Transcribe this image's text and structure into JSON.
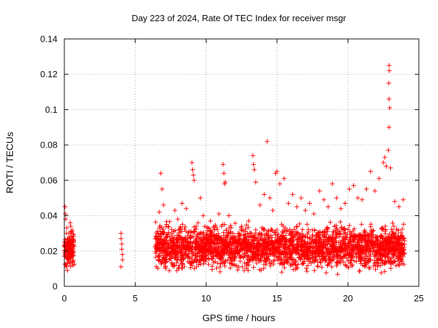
{
  "chart_data": {
    "type": "scatter",
    "title": "Day 223 of 2024, Rate Of TEC Index for receiver msgr",
    "xlabel": "GPS time / hours",
    "ylabel": "ROTI / TECUs",
    "xlim": [
      0,
      25
    ],
    "ylim": [
      0,
      0.14
    ],
    "x_ticks": [
      0,
      5,
      10,
      15,
      20,
      25
    ],
    "y_ticks": [
      0,
      0.02,
      0.04,
      0.06,
      0.08,
      0.1,
      0.12,
      0.14
    ],
    "x_tick_labels": [
      "0",
      "5",
      "10",
      "15",
      "20",
      "25"
    ],
    "y_tick_labels": [
      "0",
      "0.02",
      "0.04",
      "0.06",
      "0.08",
      "0.1",
      "0.12",
      "0.14"
    ],
    "grid": true,
    "marker": "+",
    "color": "#ff0000",
    "series": [
      {
        "name": "ROTI",
        "points": [
          [
            0.05,
            0.045
          ],
          [
            0.1,
            0.038
          ],
          [
            0.15,
            0.03
          ],
          [
            0.2,
            0.024
          ],
          [
            0.25,
            0.02
          ],
          [
            0.3,
            0.016
          ],
          [
            0.35,
            0.013
          ],
          [
            0.4,
            0.025
          ],
          [
            0.45,
            0.034
          ],
          [
            0.5,
            0.028
          ],
          [
            0.55,
            0.019
          ],
          [
            0.6,
            0.012
          ],
          [
            0.08,
            0.041
          ],
          [
            0.18,
            0.033
          ],
          [
            0.28,
            0.027
          ],
          [
            0.38,
            0.022
          ],
          [
            0.48,
            0.018
          ],
          [
            0.58,
            0.014
          ],
          [
            0.12,
            0.011
          ],
          [
            0.22,
            0.009
          ],
          [
            0.32,
            0.03
          ],
          [
            0.42,
            0.036
          ],
          [
            0.52,
            0.031
          ],
          [
            0.62,
            0.021
          ],
          [
            4.0,
            0.03
          ],
          [
            4.0,
            0.027
          ],
          [
            4.05,
            0.024
          ],
          [
            4.05,
            0.021
          ],
          [
            4.1,
            0.018
          ],
          [
            4.1,
            0.015
          ],
          [
            4.0,
            0.011
          ],
          [
            6.5,
            0.028
          ],
          [
            6.7,
            0.042
          ],
          [
            6.8,
            0.064
          ],
          [
            6.9,
            0.055
          ],
          [
            7.0,
            0.046
          ],
          [
            7.2,
            0.035
          ],
          [
            7.5,
            0.022
          ],
          [
            7.8,
            0.043
          ],
          [
            8.0,
            0.038
          ],
          [
            8.3,
            0.047
          ],
          [
            8.6,
            0.044
          ],
          [
            8.8,
            0.031
          ],
          [
            9.0,
            0.07
          ],
          [
            9.05,
            0.066
          ],
          [
            9.1,
            0.063
          ],
          [
            9.15,
            0.06
          ],
          [
            9.3,
            0.034
          ],
          [
            9.6,
            0.05
          ],
          [
            9.8,
            0.04
          ],
          [
            10.0,
            0.028
          ],
          [
            10.3,
            0.037
          ],
          [
            10.6,
            0.032
          ],
          [
            10.9,
            0.041
          ],
          [
            11.2,
            0.069
          ],
          [
            11.25,
            0.064
          ],
          [
            11.3,
            0.058
          ],
          [
            11.35,
            0.059
          ],
          [
            11.6,
            0.04
          ],
          [
            11.9,
            0.03
          ],
          [
            12.2,
            0.022
          ],
          [
            12.5,
            0.034
          ],
          [
            12.8,
            0.028
          ],
          [
            13.0,
            0.037
          ],
          [
            13.3,
            0.074
          ],
          [
            13.35,
            0.069
          ],
          [
            13.4,
            0.066
          ],
          [
            13.5,
            0.059
          ],
          [
            13.8,
            0.046
          ],
          [
            14.1,
            0.052
          ],
          [
            14.3,
            0.082
          ],
          [
            14.5,
            0.05
          ],
          [
            14.7,
            0.043
          ],
          [
            14.9,
            0.064
          ],
          [
            15.0,
            0.065
          ],
          [
            15.2,
            0.058
          ],
          [
            15.5,
            0.061
          ],
          [
            15.8,
            0.047
          ],
          [
            16.1,
            0.052
          ],
          [
            16.4,
            0.045
          ],
          [
            16.7,
            0.05
          ],
          [
            17.0,
            0.043
          ],
          [
            17.3,
            0.047
          ],
          [
            17.6,
            0.041
          ],
          [
            18.0,
            0.054
          ],
          [
            18.3,
            0.049
          ],
          [
            18.6,
            0.045
          ],
          [
            18.9,
            0.058
          ],
          [
            19.2,
            0.05
          ],
          [
            19.5,
            0.044
          ],
          [
            19.8,
            0.047
          ],
          [
            20.1,
            0.055
          ],
          [
            20.4,
            0.057
          ],
          [
            20.7,
            0.05
          ],
          [
            21.0,
            0.049
          ],
          [
            21.3,
            0.055
          ],
          [
            21.6,
            0.065
          ],
          [
            21.9,
            0.054
          ],
          [
            22.2,
            0.061
          ],
          [
            22.5,
            0.07
          ],
          [
            22.6,
            0.073
          ],
          [
            22.7,
            0.068
          ],
          [
            22.85,
            0.077
          ],
          [
            22.9,
            0.125
          ],
          [
            22.92,
            0.122
          ],
          [
            22.88,
            0.115
          ],
          [
            22.9,
            0.106
          ],
          [
            22.95,
            0.101
          ],
          [
            22.9,
            0.09
          ],
          [
            23.0,
            0.067
          ],
          [
            23.3,
            0.048
          ],
          [
            23.6,
            0.045
          ],
          [
            23.9,
            0.049
          ]
        ]
      }
    ],
    "dense_band": [
      {
        "x_from": 0.0,
        "x_to": 0.7,
        "y_low": 0.009,
        "y_high": 0.03,
        "density": 130
      },
      {
        "x_from": 6.4,
        "x_to": 24.0,
        "y_low": 0.006,
        "y_high": 0.034,
        "density": 2600
      }
    ]
  }
}
